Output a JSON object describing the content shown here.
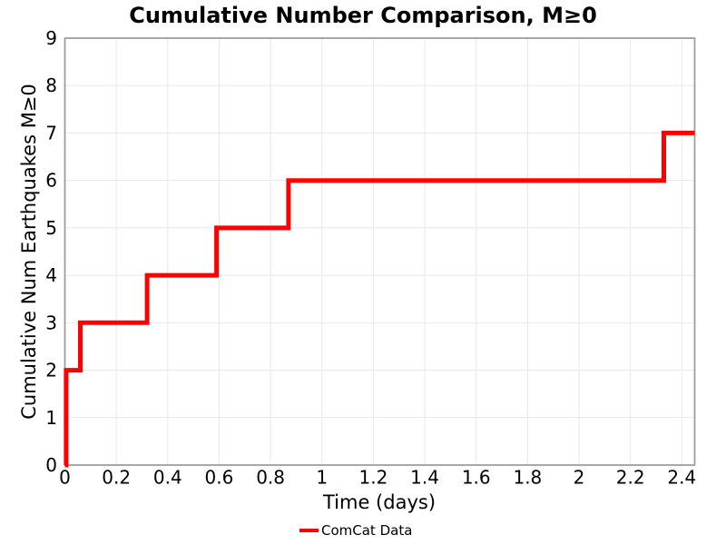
{
  "chart_data": {
    "type": "line",
    "subtype": "cumulative-step",
    "title": "Cumulative Number Comparison, M≥0",
    "xlabel": "Time (days)",
    "ylabel": "Cumulative Num Earthquakes M≥0",
    "xlim": [
      0,
      2.45
    ],
    "ylim": [
      0,
      9
    ],
    "xticks": [
      0,
      0.2,
      0.4,
      0.6,
      0.8,
      1,
      1.2,
      1.4,
      1.6,
      1.8,
      2,
      2.2,
      2.4
    ],
    "xtick_labels": [
      "0",
      "0.2",
      "0.4",
      "0.6",
      "0.8",
      "1",
      "1.2",
      "1.4",
      "1.6",
      "1.8",
      "2",
      "2.2",
      "2.4"
    ],
    "yticks": [
      0,
      1,
      2,
      3,
      4,
      5,
      6,
      7,
      8,
      9
    ],
    "ytick_labels": [
      "0",
      "1",
      "2",
      "3",
      "4",
      "5",
      "6",
      "7",
      "8",
      "9"
    ],
    "grid": true,
    "legend": {
      "position": "below-axes-center",
      "entries": [
        {
          "label": "ComCat Data",
          "color": "#ff0000",
          "style": "line"
        }
      ]
    },
    "series": [
      {
        "name": "ComCat Data",
        "color": "#ff0000",
        "line_width": 5,
        "step_points": [
          [
            0,
            0
          ],
          [
            0.005,
            0
          ],
          [
            0.005,
            2
          ],
          [
            0.06,
            2
          ],
          [
            0.06,
            3
          ],
          [
            0.32,
            3
          ],
          [
            0.32,
            4
          ],
          [
            0.59,
            4
          ],
          [
            0.59,
            5
          ],
          [
            0.87,
            5
          ],
          [
            0.87,
            6
          ],
          [
            2.33,
            6
          ],
          [
            2.33,
            7
          ],
          [
            2.45,
            7
          ]
        ],
        "event_cumulative_counts": [
          {
            "time_days": 0.005,
            "cumulative": 2
          },
          {
            "time_days": 0.06,
            "cumulative": 3
          },
          {
            "time_days": 0.32,
            "cumulative": 4
          },
          {
            "time_days": 0.59,
            "cumulative": 5
          },
          {
            "time_days": 0.87,
            "cumulative": 6
          },
          {
            "time_days": 2.33,
            "cumulative": 7
          }
        ]
      }
    ],
    "colors": {
      "line": "#ff0000",
      "grid": "#e8e8e8",
      "spine": "#9e9e9e",
      "text": "#000000",
      "background": "#ffffff"
    }
  }
}
